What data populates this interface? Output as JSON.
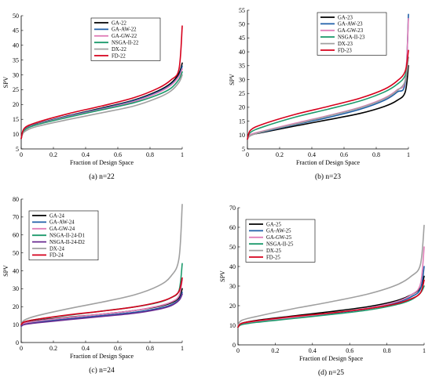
{
  "colors": {
    "black": "#000000",
    "blue": "#1f5fa8",
    "pink": "#e07fb8",
    "green": "#1d9a6c",
    "gray": "#a0a0a0",
    "red": "#d6001c",
    "purple": "#6a2c91"
  },
  "chart_data": [
    {
      "type": "line",
      "caption": "(a) n=22",
      "xlabel": "Fraction of Design Space",
      "ylabel": "SPV",
      "xlim": [
        0,
        1
      ],
      "ylim": [
        5,
        50
      ],
      "yticks": [
        5,
        10,
        15,
        20,
        25,
        30,
        35,
        40,
        45,
        50
      ],
      "xticks": [
        0,
        0.2,
        0.4,
        0.6,
        0.8,
        1
      ],
      "legend": "top-right",
      "x": [
        0,
        0.02,
        0.1,
        0.3,
        0.5,
        0.7,
        0.85,
        0.93,
        0.98,
        1
      ],
      "series": [
        {
          "name": "GA-22",
          "color": "black",
          "values": [
            8.5,
            11.5,
            13.5,
            16.3,
            18.8,
            21.5,
            24.6,
            27.2,
            30.5,
            34
          ]
        },
        {
          "name": "GA-AW-22",
          "color": "blue",
          "values": [
            8.5,
            11.5,
            13.4,
            16.2,
            18.6,
            21.3,
            24.3,
            26.8,
            29.8,
            33
          ]
        },
        {
          "name": "GA-GW-22",
          "color": "pink",
          "values": [
            8.5,
            11.4,
            13.3,
            16,
            18.4,
            21,
            24,
            26.5,
            29.5,
            32
          ]
        },
        {
          "name": "NSGA-II-22",
          "color": "green",
          "values": [
            8.5,
            11.3,
            13.2,
            15.8,
            18.2,
            20.6,
            23.3,
            25.5,
            28.5,
            31
          ]
        },
        {
          "name": "DX-22",
          "color": "gray",
          "values": [
            8.5,
            10.8,
            12.6,
            15,
            17.2,
            19.5,
            22.3,
            24.6,
            27.5,
            30
          ]
        },
        {
          "name": "FD-22",
          "color": "red",
          "values": [
            8.5,
            12,
            14,
            17,
            19.5,
            22.3,
            25.5,
            28.3,
            32,
            46.5
          ]
        }
      ]
    },
    {
      "type": "line",
      "caption": "(b) n=23",
      "xlabel": "Fraction of Design Space",
      "ylabel": "SPV",
      "xlim": [
        0,
        1
      ],
      "ylim": [
        5,
        55
      ],
      "yticks": [
        5,
        10,
        15,
        20,
        25,
        30,
        35,
        40,
        45,
        50,
        55
      ],
      "xticks": [
        0,
        0.2,
        0.4,
        0.6,
        0.8,
        1
      ],
      "legend": "top-right",
      "x": [
        0,
        0.02,
        0.1,
        0.3,
        0.5,
        0.7,
        0.85,
        0.93,
        0.98,
        1
      ],
      "series": [
        {
          "name": "GA-23",
          "color": "black",
          "values": [
            8.5,
            10,
            11,
            13.3,
            15.5,
            17.8,
            20.3,
            22.5,
            25.5,
            35
          ]
        },
        {
          "name": "GA-AW-23",
          "color": "blue",
          "values": [
            8.5,
            10,
            11.2,
            13.8,
            16.3,
            19.3,
            22.5,
            25.5,
            29,
            53.5
          ]
        },
        {
          "name": "GA-GW-23",
          "color": "pink",
          "values": [
            8.5,
            10.2,
            11.5,
            14.3,
            17,
            20,
            23.3,
            26.3,
            30,
            52
          ]
        },
        {
          "name": "NSGA-II-23",
          "color": "green",
          "values": [
            8.5,
            11,
            13,
            16.5,
            19.3,
            22.3,
            25.5,
            28.3,
            31.5,
            38
          ]
        },
        {
          "name": "DX-23",
          "color": "gray",
          "values": [
            8.5,
            9.8,
            11.3,
            14,
            16.8,
            19.8,
            23,
            26,
            29.5,
            38
          ]
        },
        {
          "name": "FD-23",
          "color": "red",
          "values": [
            8.5,
            11.8,
            14,
            17.5,
            20.3,
            23.3,
            26.5,
            29.5,
            33,
            40.5
          ]
        }
      ]
    },
    {
      "type": "line",
      "caption": "(c) n=24",
      "xlabel": "Fraction of Design Space",
      "ylabel": "SPV",
      "xlim": [
        0,
        1
      ],
      "ylim": [
        0,
        80
      ],
      "yticks": [
        0,
        10,
        20,
        30,
        40,
        50,
        60,
        70,
        80
      ],
      "xticks": [
        0,
        0.2,
        0.4,
        0.6,
        0.8,
        1
      ],
      "legend": "top-left",
      "x": [
        0,
        0.02,
        0.1,
        0.3,
        0.5,
        0.7,
        0.85,
        0.93,
        0.98,
        1
      ],
      "series": [
        {
          "name": "GA-24",
          "color": "black",
          "values": [
            9.5,
            11,
            12.3,
            14.2,
            15.8,
            17.8,
            20,
            22,
            25,
            30
          ]
        },
        {
          "name": "GA-AW-24",
          "color": "blue",
          "values": [
            9.5,
            10.5,
            11.5,
            13.3,
            15,
            16.8,
            19,
            21,
            24,
            28
          ]
        },
        {
          "name": "GA-GW-24",
          "color": "pink",
          "values": [
            9.5,
            10.8,
            12,
            14,
            15.8,
            17.8,
            20.3,
            22.5,
            26,
            35
          ]
        },
        {
          "name": "NSGA-II-24-D1",
          "color": "green",
          "values": [
            9.5,
            11.5,
            13,
            15.3,
            17.5,
            19.8,
            22.3,
            25,
            29,
            44
          ]
        },
        {
          "name": "NSGA-II-24-D2",
          "color": "purple",
          "values": [
            9,
            10,
            11,
            12.8,
            14.5,
            16.3,
            18.5,
            20.5,
            23.5,
            27
          ]
        },
        {
          "name": "DX-24",
          "color": "gray",
          "values": [
            10,
            12.5,
            15,
            19,
            22.5,
            26.5,
            31.5,
            37,
            47,
            77
          ]
        },
        {
          "name": "FD-24",
          "color": "red",
          "values": [
            10,
            11.5,
            13,
            15.5,
            17.5,
            19.8,
            22.5,
            25,
            28.5,
            36
          ]
        }
      ]
    },
    {
      "type": "line",
      "caption": "(d) n=25",
      "xlabel": "Fraction of Design Space",
      "ylabel": "SPV",
      "xlim": [
        0,
        1
      ],
      "ylim": [
        0,
        70
      ],
      "yticks": [
        0,
        10,
        20,
        30,
        40,
        50,
        60,
        70
      ],
      "xticks": [
        0,
        0.2,
        0.4,
        0.6,
        0.8,
        1
      ],
      "legend": "top-left",
      "x": [
        0,
        0.02,
        0.1,
        0.3,
        0.5,
        0.7,
        0.85,
        0.93,
        0.98,
        1
      ],
      "series": [
        {
          "name": "GA-25",
          "color": "black",
          "values": [
            9,
            11,
            12.5,
            14.8,
            17,
            19.5,
            22.5,
            25.5,
            29,
            35
          ]
        },
        {
          "name": "GA-AW-25",
          "color": "blue",
          "values": [
            9,
            10.5,
            11.8,
            14,
            16,
            18.5,
            21.5,
            24.5,
            28.5,
            40
          ]
        },
        {
          "name": "GA-GW-25",
          "color": "pink",
          "values": [
            9,
            10.5,
            11.8,
            14,
            16.2,
            18.8,
            22,
            25.5,
            31,
            50
          ]
        },
        {
          "name": "NSGA-II-25",
          "color": "green",
          "values": [
            9,
            10.3,
            11.5,
            13.5,
            15.5,
            17.8,
            20.5,
            23,
            26.5,
            30
          ]
        },
        {
          "name": "DX-25",
          "color": "gray",
          "values": [
            10,
            12.5,
            14.5,
            18.5,
            22,
            26,
            30.5,
            35,
            41,
            61
          ]
        },
        {
          "name": "FD-25",
          "color": "red",
          "values": [
            9,
            11,
            12.3,
            14.5,
            16.3,
            18.5,
            21,
            23.5,
            26.5,
            33
          ]
        }
      ]
    }
  ]
}
